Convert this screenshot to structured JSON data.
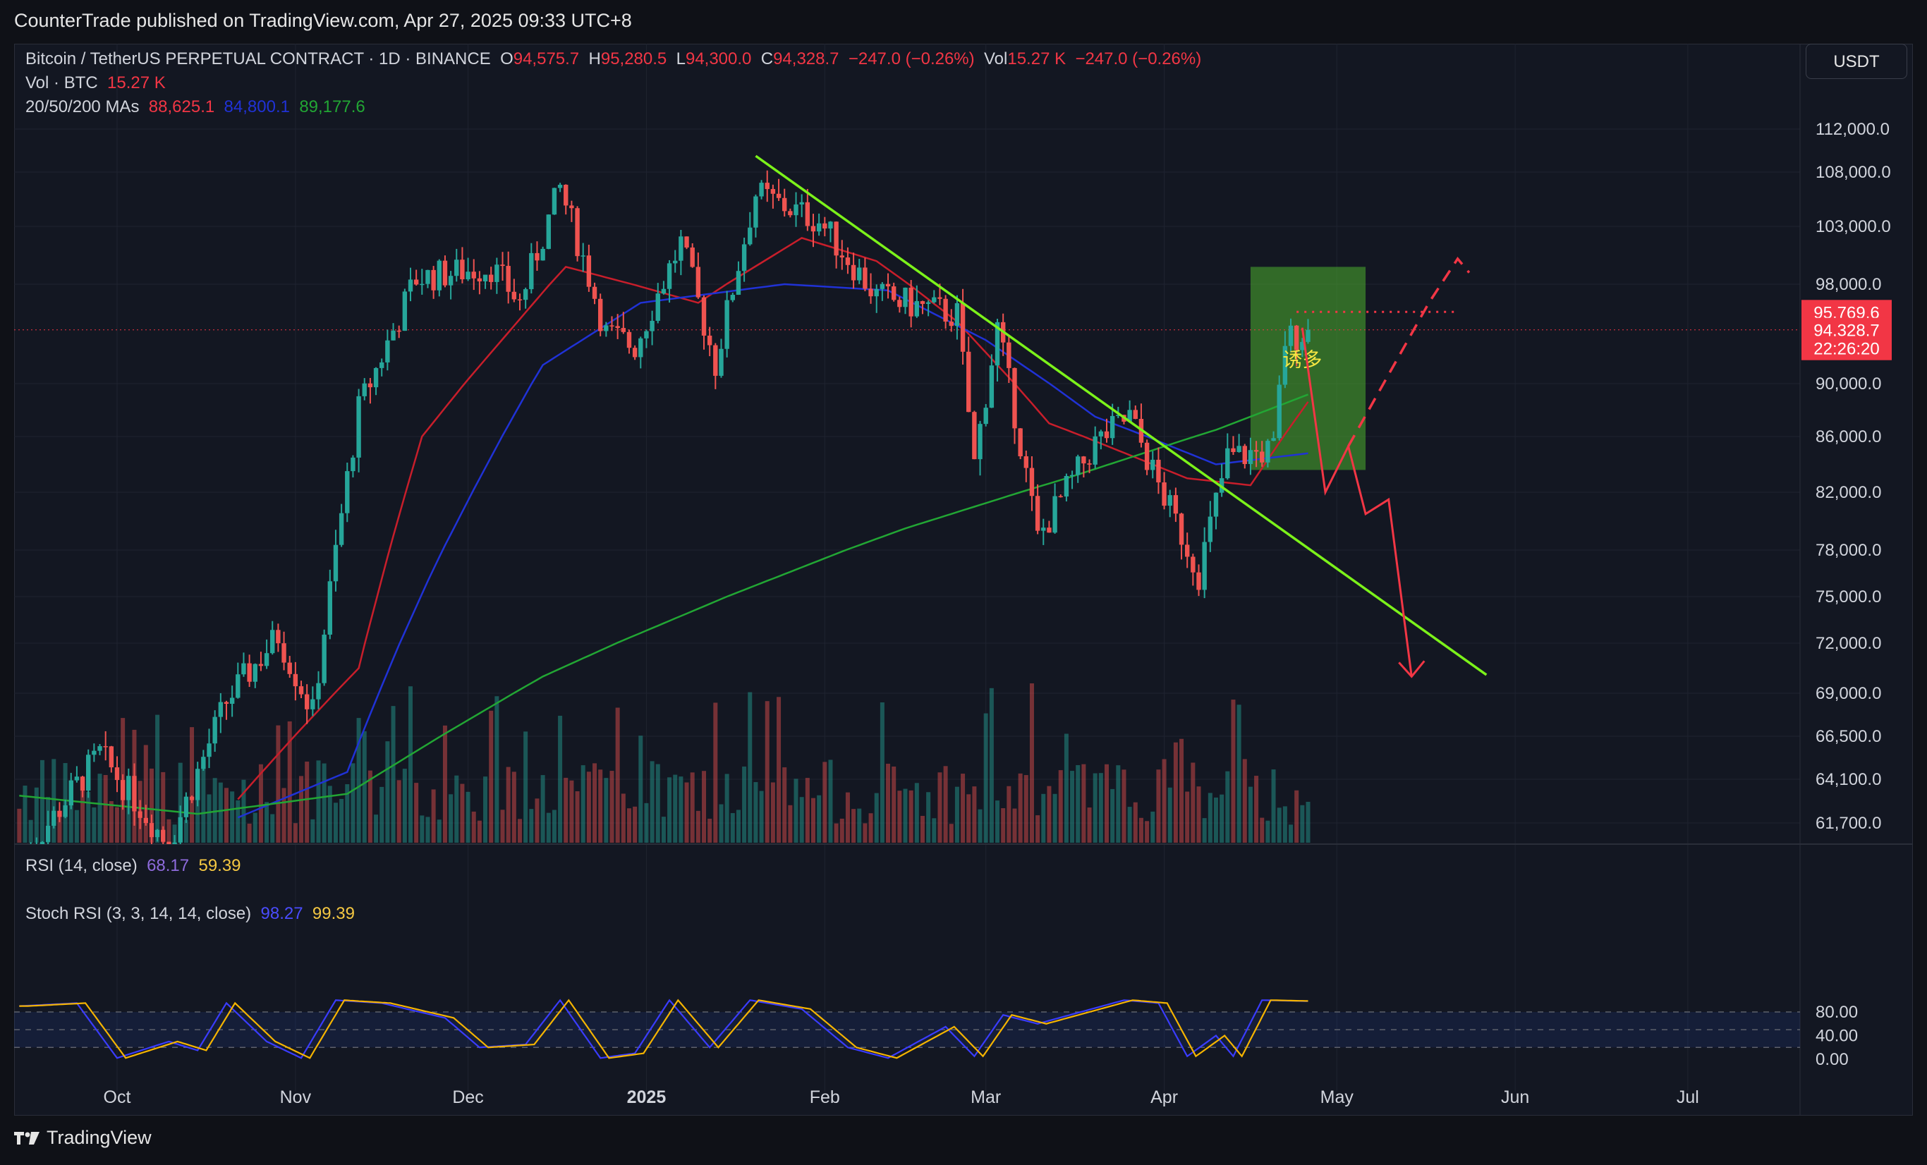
{
  "header": {
    "published": "CounterTrade published on TradingView.com, Apr 27, 2025 09:33 UTC+8"
  },
  "legend": {
    "symbol": "Bitcoin / TetherUS PERPETUAL CONTRACT · 1D · BINANCE",
    "o_label": "O",
    "o_val": "94,575.7",
    "h_label": "H",
    "h_val": "95,280.5",
    "l_label": "L",
    "l_val": "94,300.0",
    "c_label": "C",
    "c_val": "94,328.7",
    "change": "−247.0 (−0.26%)",
    "vol_label": "Vol",
    "vol_val": "15.27 K",
    "vol_change": "−247.0 (−0.26%)",
    "vol_series": "Vol · BTC",
    "vol_series_val": "15.27 K",
    "ma_label": "20/50/200 MAs",
    "ma20": "88,625.1",
    "ma50": "84,800.1",
    "ma200": "89,177.6",
    "rsi_label": "RSI (14, close)",
    "rsi_a": "68.17",
    "rsi_b": "59.39",
    "stoch_label": "Stoch RSI (3, 3, 14, 14, close)",
    "stoch_k": "98.27",
    "stoch_d": "99.39"
  },
  "currency_button": "USDT",
  "annotation_text": "诱多",
  "footer": {
    "brand": "TradingView"
  },
  "chart_data": {
    "type": "candlestick",
    "price_axis_ticks": [
      "112,000.0",
      "108,000.0",
      "103,000.0",
      "98,000.0",
      "90,000.0",
      "86,000.0",
      "82,000.0",
      "78,000.0",
      "75,000.0",
      "72,000.0",
      "69,000.0",
      "66,500.0",
      "64,100.0",
      "61,700.0"
    ],
    "price_tick_values": [
      112000,
      108000,
      103000,
      98000,
      90000,
      86000,
      82000,
      78000,
      75000,
      72000,
      69000,
      66500,
      64100,
      61700
    ],
    "price_labels": [
      {
        "text": "95,769.6",
        "value": 95769.6,
        "color": "#f23645"
      },
      {
        "text": "94,328.7",
        "value": 94328.7,
        "color": "#f23645"
      },
      {
        "text": "22:26:20",
        "value": null,
        "color": "#f23645"
      }
    ],
    "time_axis_labels": [
      {
        "text": "Oct",
        "date": "2024-10-01",
        "bold": false
      },
      {
        "text": "Nov",
        "date": "2024-11-01",
        "bold": false
      },
      {
        "text": "Dec",
        "date": "2024-12-01",
        "bold": false
      },
      {
        "text": "2025",
        "date": "2025-01-01",
        "bold": true
      },
      {
        "text": "Feb",
        "date": "2025-02-01",
        "bold": false
      },
      {
        "text": "Mar",
        "date": "2025-03-01",
        "bold": false
      },
      {
        "text": "Apr",
        "date": "2025-04-01",
        "bold": false
      },
      {
        "text": "May",
        "date": "2025-05-01",
        "bold": false
      },
      {
        "text": "Jun",
        "date": "2025-06-01",
        "bold": false
      },
      {
        "text": "Jul",
        "date": "2025-07-01",
        "bold": false
      }
    ],
    "price_keypoints": [
      [
        "2024-09-14",
        59500
      ],
      [
        "2024-09-28",
        65500
      ],
      [
        "2024-10-10",
        60500
      ],
      [
        "2024-10-20",
        68500
      ],
      [
        "2024-10-29",
        72500
      ],
      [
        "2024-11-04",
        67800
      ],
      [
        "2024-11-12",
        88000
      ],
      [
        "2024-11-22",
        98500
      ],
      [
        "2024-12-05",
        99500
      ],
      [
        "2024-12-10",
        96500
      ],
      [
        "2024-12-17",
        106500
      ],
      [
        "2024-12-25",
        94000
      ],
      [
        "2024-12-30",
        93000
      ],
      [
        "2025-01-07",
        101500
      ],
      [
        "2025-01-13",
        91500
      ],
      [
        "2025-01-20",
        106000
      ],
      [
        "2025-01-31",
        103500
      ],
      [
        "2025-02-10",
        97000
      ],
      [
        "2025-02-24",
        95500
      ],
      [
        "2025-02-27",
        84000
      ],
      [
        "2025-03-03",
        94500
      ],
      [
        "2025-03-10",
        78800
      ],
      [
        "2025-03-20",
        85500
      ],
      [
        "2025-03-26",
        87500
      ],
      [
        "2025-03-31",
        82500
      ],
      [
        "2025-04-07",
        76500
      ],
      [
        "2025-04-12",
        84500
      ],
      [
        "2025-04-20",
        85000
      ],
      [
        "2025-04-22",
        93500
      ],
      [
        "2025-04-26",
        94328.7
      ]
    ],
    "ma_series": [
      {
        "name": "MA20",
        "color": "#c81e2b",
        "points": [
          [
            "2024-10-22",
            63000
          ],
          [
            "2024-11-12",
            70500
          ],
          [
            "2024-11-23",
            86000
          ],
          [
            "2024-12-05",
            92500
          ],
          [
            "2024-12-18",
            99500
          ],
          [
            "2025-01-10",
            96500
          ],
          [
            "2025-01-28",
            102000
          ],
          [
            "2025-02-10",
            100000
          ],
          [
            "2025-02-24",
            95000
          ],
          [
            "2025-03-12",
            87000
          ],
          [
            "2025-04-05",
            83000
          ],
          [
            "2025-04-16",
            82500
          ],
          [
            "2025-04-26",
            88625.1
          ]
        ]
      },
      {
        "name": "MA50",
        "color": "#2032d6",
        "points": [
          [
            "2024-10-22",
            62000
          ],
          [
            "2024-11-10",
            64500
          ],
          [
            "2024-11-24",
            76000
          ],
          [
            "2024-12-14",
            91500
          ],
          [
            "2024-12-31",
            96500
          ],
          [
            "2025-01-25",
            98000
          ],
          [
            "2025-02-12",
            97500
          ],
          [
            "2025-03-01",
            93500
          ],
          [
            "2025-03-20",
            87500
          ],
          [
            "2025-04-10",
            84000
          ],
          [
            "2025-04-26",
            84800.1
          ]
        ]
      },
      {
        "name": "MA200",
        "color": "#22a634",
        "points": [
          [
            "2024-09-14",
            63200
          ],
          [
            "2024-10-15",
            62200
          ],
          [
            "2024-11-10",
            63300
          ],
          [
            "2024-12-14",
            70000
          ],
          [
            "2025-01-15",
            75000
          ],
          [
            "2025-02-15",
            79500
          ],
          [
            "2025-03-15",
            83000
          ],
          [
            "2025-04-10",
            86500
          ],
          [
            "2025-04-26",
            89177.6
          ]
        ]
      }
    ],
    "volume_scale_note": "relative",
    "rsi_axis_ticks": [
      "80.00",
      "40.00",
      "0.00"
    ],
    "rsi_tick_values": [
      80,
      40,
      0
    ],
    "stoch_k_keypoints": [
      [
        "2024-09-14",
        90
      ],
      [
        "2024-09-24",
        95
      ],
      [
        "2024-10-01",
        2
      ],
      [
        "2024-10-10",
        30
      ],
      [
        "2024-10-15",
        15
      ],
      [
        "2024-10-20",
        95
      ],
      [
        "2024-10-27",
        30
      ],
      [
        "2024-11-02",
        2
      ],
      [
        "2024-11-08",
        100
      ],
      [
        "2024-11-16",
        95
      ],
      [
        "2024-11-27",
        70
      ],
      [
        "2024-12-03",
        20
      ],
      [
        "2024-12-11",
        25
      ],
      [
        "2024-12-17",
        100
      ],
      [
        "2024-12-24",
        2
      ],
      [
        "2024-12-30",
        10
      ],
      [
        "2025-01-05",
        100
      ],
      [
        "2025-01-12",
        20
      ],
      [
        "2025-01-19",
        100
      ],
      [
        "2025-01-28",
        85
      ],
      [
        "2025-02-05",
        20
      ],
      [
        "2025-02-12",
        2
      ],
      [
        "2025-02-22",
        55
      ],
      [
        "2025-02-27",
        5
      ],
      [
        "2025-03-04",
        75
      ],
      [
        "2025-03-10",
        60
      ],
      [
        "2025-03-25",
        100
      ],
      [
        "2025-03-31",
        95
      ],
      [
        "2025-04-05",
        5
      ],
      [
        "2025-04-10",
        40
      ],
      [
        "2025-04-13",
        5
      ],
      [
        "2025-04-18",
        100
      ],
      [
        "2025-04-26",
        98.27
      ]
    ],
    "stoch_d_offset_days": 1.5,
    "drawings": {
      "downtrend_line": {
        "color": "#7cf21a",
        "from": [
          "2025-01-20",
          109500
        ],
        "to": [
          "2025-05-27",
          70100
        ]
      },
      "green_box": {
        "color": "#2e8b23",
        "from": [
          "2025-04-16",
          99500
        ],
        "to": [
          "2025-05-06",
          83600
        ]
      },
      "dotted_level": {
        "color": "#f23645",
        "value": 95769.6,
        "from": [
          "2025-04-24",
          0
        ],
        "to": [
          "2025-05-22",
          0
        ]
      },
      "red_down_path": {
        "color": "#f23645",
        "points": [
          [
            "2025-04-25",
            94500
          ],
          [
            "2025-04-29",
            82000
          ],
          [
            "2025-05-03",
            85300
          ],
          [
            "2025-05-06",
            80500
          ],
          [
            "2025-05-10",
            81500
          ],
          [
            "2025-05-14",
            70000
          ]
        ]
      },
      "red_dashed_up": {
        "color": "#f23645",
        "points": [
          [
            "2025-05-03",
            85300
          ],
          [
            "2025-05-17",
            96500
          ],
          [
            "2025-05-22",
            100200
          ],
          [
            "2025-05-24",
            99000
          ]
        ]
      },
      "red_arrow_head": {
        "color": "#f23645",
        "tip": [
          "2025-05-14",
          70000
        ]
      }
    }
  }
}
